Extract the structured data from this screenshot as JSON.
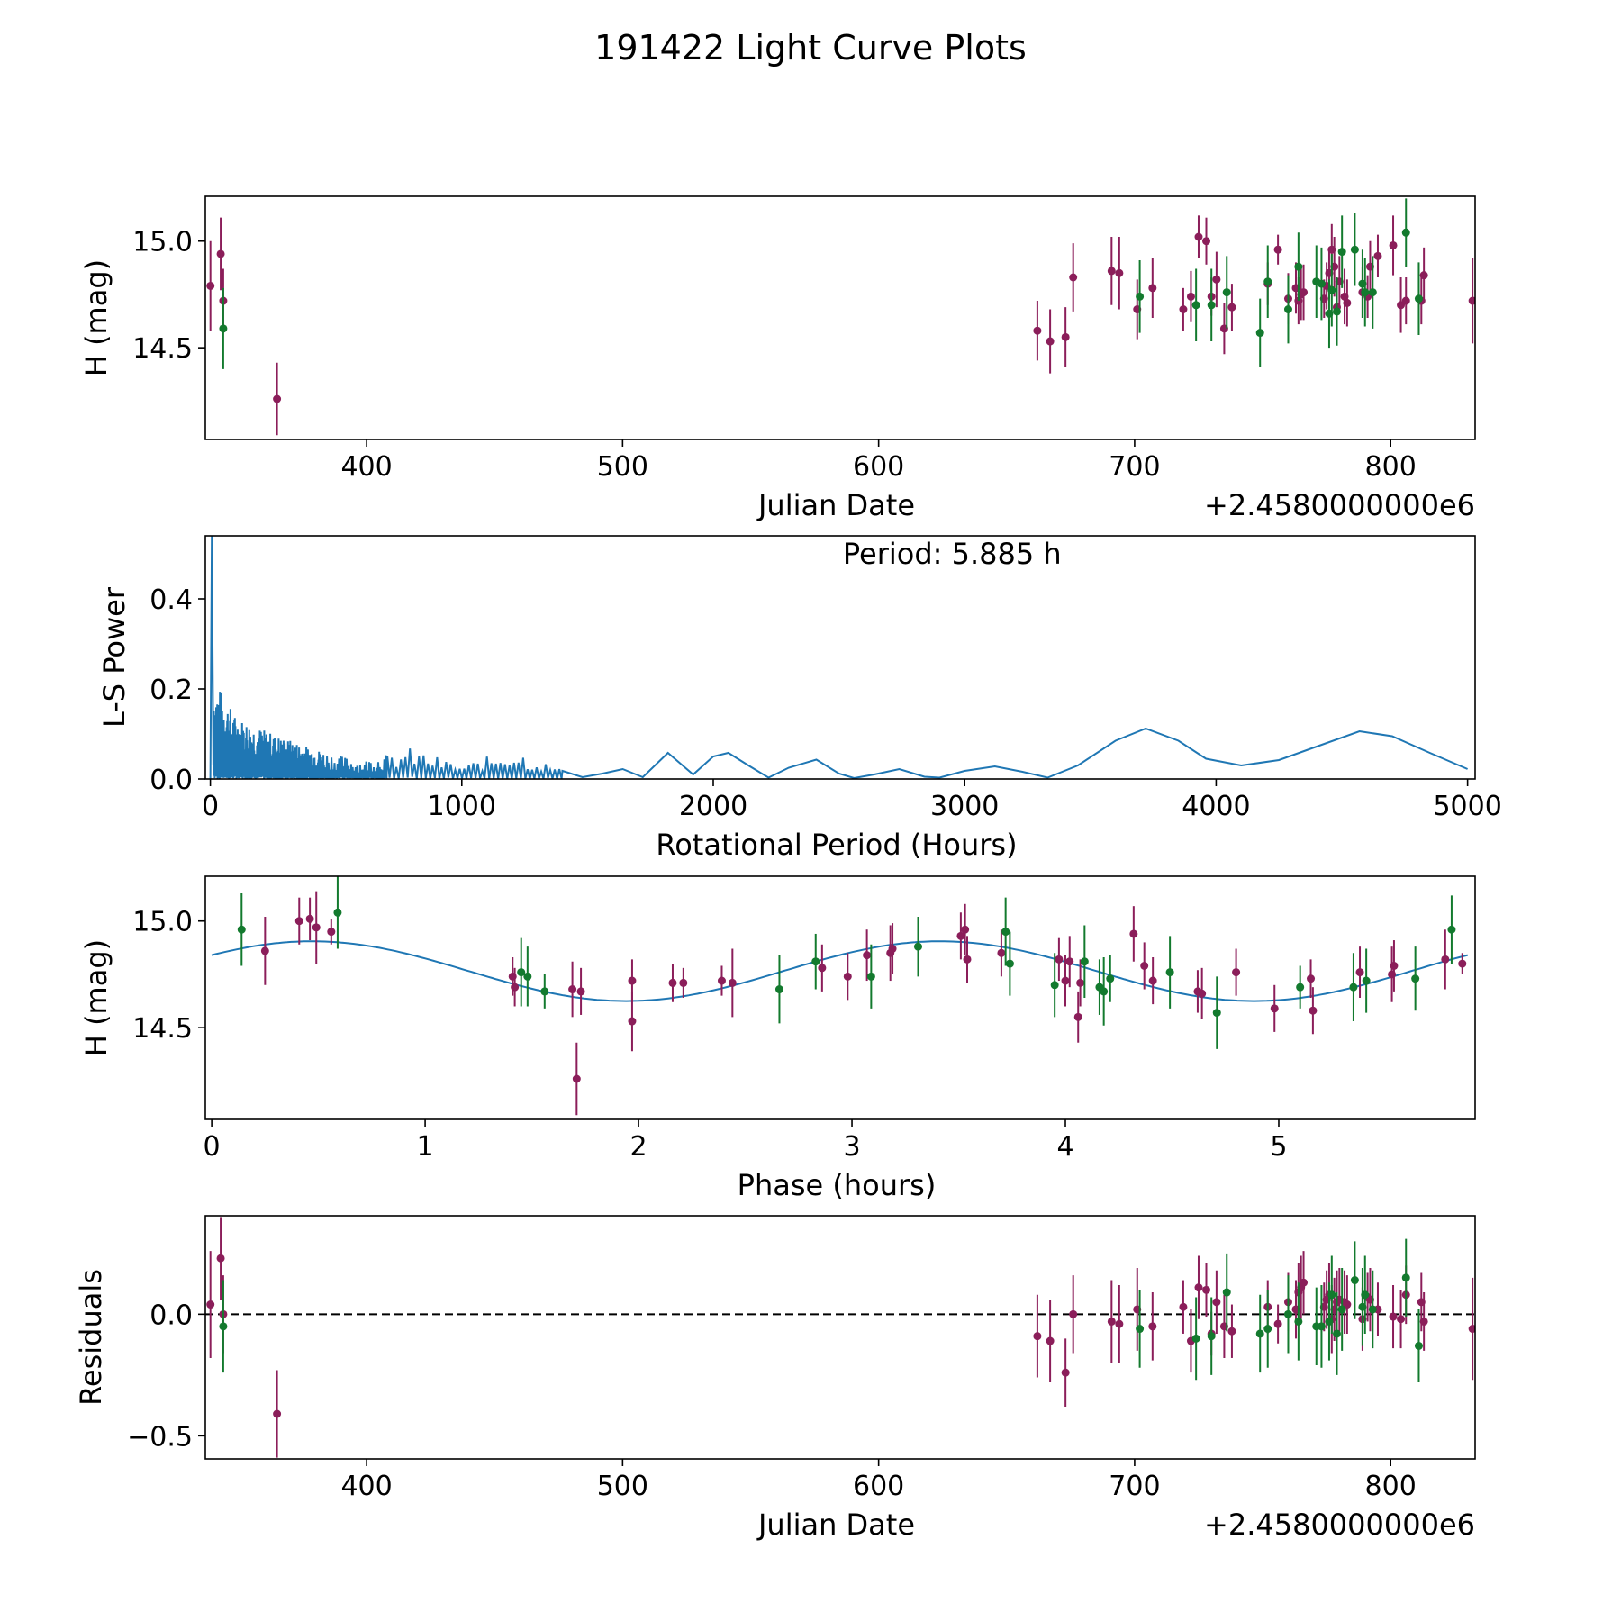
{
  "figure": {
    "title": "191422 Light Curve Plots"
  },
  "colors": {
    "series_a": "#8B1E5A",
    "series_b": "#137A2E",
    "curve": "#1F77B4",
    "axis": "#000000"
  },
  "chart_data": [
    {
      "id": "lightcurve",
      "type": "scatter",
      "title": "",
      "xlabel": "Julian Date",
      "ylabel": "H (mag)",
      "offset_text": "+2.4580000000e6",
      "xlim": [
        337,
        833
      ],
      "ylim": [
        14.07,
        15.21
      ],
      "xticks": [
        400,
        500,
        600,
        700,
        800
      ],
      "xtick_labels": [
        "400",
        "500",
        "600",
        "700",
        "800"
      ],
      "yticks": [
        14.5,
        15.0
      ],
      "ytick_labels": [
        "14.5",
        "15.0"
      ],
      "series": [
        {
          "name": "series-a",
          "x": [
            339,
            343,
            344,
            365,
            662,
            667,
            673,
            676,
            691,
            694,
            701,
            707,
            719,
            722,
            725,
            728,
            730,
            732,
            735,
            738,
            752,
            756,
            760,
            763,
            764,
            765,
            766,
            774,
            775,
            776,
            777,
            778,
            779,
            780,
            782,
            783,
            789,
            791,
            792,
            795,
            801,
            804,
            806,
            812,
            813,
            832
          ],
          "y": [
            14.79,
            14.94,
            14.72,
            14.26,
            14.58,
            14.53,
            14.55,
            14.83,
            14.86,
            14.85,
            14.68,
            14.78,
            14.68,
            14.74,
            15.02,
            15.0,
            14.74,
            14.82,
            14.59,
            14.69,
            14.8,
            14.96,
            14.73,
            14.78,
            14.72,
            14.75,
            14.76,
            14.73,
            14.79,
            14.85,
            14.96,
            14.88,
            14.69,
            14.81,
            14.74,
            14.71,
            14.76,
            14.74,
            14.88,
            14.93,
            14.98,
            14.7,
            14.72,
            14.72,
            14.84,
            14.72
          ],
          "err": [
            0.21,
            0.17,
            0.15,
            0.17,
            0.14,
            0.15,
            0.14,
            0.16,
            0.16,
            0.17,
            0.14,
            0.14,
            0.1,
            0.12,
            0.1,
            0.11,
            0.09,
            0.13,
            0.12,
            0.11,
            0.1,
            0.07,
            0.12,
            0.12,
            0.11,
            0.12,
            0.13,
            0.09,
            0.11,
            0.12,
            0.12,
            0.14,
            0.12,
            0.12,
            0.13,
            0.11,
            0.12,
            0.1,
            0.12,
            0.1,
            0.14,
            0.13,
            0.11,
            0.11,
            0.13,
            0.2
          ]
        },
        {
          "name": "series-b",
          "x": [
            344,
            702,
            724,
            730,
            736,
            749,
            752,
            760,
            764,
            771,
            773,
            776,
            777,
            779,
            781,
            786,
            789,
            790,
            793,
            806,
            811
          ],
          "y": [
            14.59,
            14.74,
            14.7,
            14.7,
            14.76,
            14.57,
            14.81,
            14.68,
            14.88,
            14.81,
            14.8,
            14.66,
            14.77,
            14.67,
            14.95,
            14.96,
            14.8,
            14.76,
            14.76,
            15.04,
            14.73
          ],
          "err": [
            0.19,
            0.17,
            0.17,
            0.17,
            0.17,
            0.16,
            0.17,
            0.16,
            0.16,
            0.17,
            0.17,
            0.16,
            0.17,
            0.16,
            0.17,
            0.17,
            0.16,
            0.16,
            0.17,
            0.16,
            0.17
          ]
        }
      ]
    },
    {
      "id": "periodogram",
      "type": "line",
      "title": "",
      "annotation": "Period: 5.885 h",
      "xlabel": "Rotational Period (Hours)",
      "ylabel": "L-S Power",
      "xlim": [
        -20,
        5030
      ],
      "ylim": [
        0,
        0.54
      ],
      "xticks": [
        0,
        1000,
        2000,
        3000,
        4000,
        5000
      ],
      "xtick_labels": [
        "0",
        "1000",
        "2000",
        "3000",
        "4000",
        "5000"
      ],
      "yticks": [
        0.0,
        0.2,
        0.4
      ],
      "ytick_labels": [
        "0.0",
        "0.2",
        "0.4"
      ],
      "peak": {
        "period": 5.885,
        "power": 0.54
      },
      "envelope": {
        "period": [
          0,
          100,
          250,
          400,
          600,
          800,
          1000,
          1200,
          1400,
          1600,
          1800,
          2000,
          2200,
          2400,
          2600,
          2800,
          3000,
          3200,
          3400,
          3700,
          4000,
          4200,
          4600,
          5000
        ],
        "power": [
          0.24,
          0.14,
          0.1,
          0.07,
          0.04,
          0.07,
          0.03,
          0.07,
          0.02,
          0.02,
          0.06,
          0.06,
          0.01,
          0.045,
          0.005,
          0.02,
          0.02,
          0.02,
          0.01,
          0.11,
          0.04,
          0.04,
          0.105,
          0.02
        ]
      },
      "smooth_curve": {
        "period": [
          1400,
          1480,
          1560,
          1640,
          1720,
          1820,
          1920,
          2000,
          2060,
          2140,
          2220,
          2300,
          2410,
          2500,
          2560,
          2640,
          2740,
          2840,
          2900,
          3000,
          3120,
          3230,
          3330,
          3450,
          3600,
          3720,
          3850,
          3960,
          4100,
          4250,
          4400,
          4570,
          4700,
          4850,
          5000
        ],
        "power": [
          0.018,
          0.004,
          0.012,
          0.022,
          0.004,
          0.058,
          0.01,
          0.05,
          0.058,
          0.03,
          0.003,
          0.025,
          0.043,
          0.012,
          0.002,
          0.01,
          0.022,
          0.005,
          0.003,
          0.018,
          0.028,
          0.016,
          0.003,
          0.03,
          0.085,
          0.112,
          0.085,
          0.045,
          0.03,
          0.042,
          0.072,
          0.106,
          0.095,
          0.058,
          0.022
        ]
      }
    },
    {
      "id": "phase",
      "type": "scatter",
      "title": "",
      "xlabel": "Phase (hours)",
      "ylabel": "H (mag)",
      "xlim": [
        -0.03,
        5.92
      ],
      "ylim": [
        14.07,
        15.21
      ],
      "xticks": [
        0,
        1,
        2,
        3,
        4,
        5
      ],
      "xtick_labels": [
        "0",
        "1",
        "2",
        "3",
        "4",
        "5"
      ],
      "yticks": [
        14.5,
        15.0
      ],
      "ytick_labels": [
        "14.5",
        "15.0"
      ],
      "model": {
        "mean": 14.765,
        "amplitude": 0.14,
        "peak_phase": 0.47,
        "period_hours": 2.9425,
        "x_range": [
          0,
          5.885
        ]
      },
      "series": [
        {
          "name": "series-a",
          "x": [
            0.25,
            0.41,
            0.46,
            0.49,
            0.56,
            1.41,
            1.42,
            1.69,
            1.71,
            1.73,
            1.97,
            1.97,
            2.16,
            2.21,
            2.39,
            2.44,
            2.86,
            2.98,
            3.07,
            3.18,
            3.19,
            3.51,
            3.53,
            3.54,
            3.7,
            3.97,
            4.0,
            4.02,
            4.06,
            4.07,
            4.32,
            4.37,
            4.41,
            4.62,
            4.64,
            4.8,
            4.98,
            5.15,
            5.16,
            5.38,
            5.53,
            5.54,
            5.78,
            5.86
          ],
          "y": [
            14.86,
            15.0,
            15.01,
            14.97,
            14.95,
            14.74,
            14.69,
            14.68,
            14.26,
            14.67,
            14.72,
            14.53,
            14.71,
            14.71,
            14.72,
            14.71,
            14.78,
            14.74,
            14.84,
            14.85,
            14.87,
            14.93,
            14.96,
            14.82,
            14.85,
            14.82,
            14.72,
            14.81,
            14.55,
            14.71,
            14.94,
            14.79,
            14.72,
            14.67,
            14.66,
            14.76,
            14.59,
            14.73,
            14.58,
            14.76,
            14.75,
            14.79,
            14.82,
            14.8
          ],
          "err": [
            0.16,
            0.11,
            0.1,
            0.17,
            0.06,
            0.09,
            0.09,
            0.13,
            0.17,
            0.11,
            0.1,
            0.14,
            0.09,
            0.07,
            0.07,
            0.16,
            0.11,
            0.11,
            0.12,
            0.13,
            0.12,
            0.11,
            0.12,
            0.11,
            0.11,
            0.1,
            0.12,
            0.12,
            0.12,
            0.11,
            0.13,
            0.11,
            0.11,
            0.1,
            0.12,
            0.11,
            0.11,
            0.09,
            0.11,
            0.12,
            0.13,
            0.12,
            0.14,
            0.05
          ]
        },
        {
          "name": "series-b",
          "x": [
            0.14,
            0.59,
            1.45,
            1.48,
            1.56,
            2.66,
            2.83,
            3.09,
            3.31,
            3.72,
            3.74,
            3.95,
            4.09,
            4.16,
            4.18,
            4.21,
            4.49,
            4.71,
            5.1,
            5.35,
            5.41,
            5.64,
            5.81
          ],
          "y": [
            14.96,
            15.04,
            14.76,
            14.74,
            14.67,
            14.68,
            14.81,
            14.74,
            14.88,
            14.95,
            14.8,
            14.7,
            14.81,
            14.69,
            14.67,
            14.73,
            14.76,
            14.57,
            14.69,
            14.69,
            14.72,
            14.73,
            14.96
          ],
          "err": [
            0.17,
            0.17,
            0.16,
            0.14,
            0.08,
            0.16,
            0.13,
            0.15,
            0.14,
            0.16,
            0.15,
            0.15,
            0.17,
            0.13,
            0.16,
            0.11,
            0.17,
            0.17,
            0.1,
            0.16,
            0.15,
            0.15,
            0.16
          ]
        }
      ]
    },
    {
      "id": "residuals",
      "type": "scatter",
      "title": "",
      "xlabel": "Julian Date",
      "ylabel": "Residuals",
      "offset_text": "+2.4580000000e6",
      "xlim": [
        337,
        833
      ],
      "ylim": [
        -0.595,
        0.405
      ],
      "xticks": [
        400,
        500,
        600,
        700,
        800
      ],
      "xtick_labels": [
        "400",
        "500",
        "600",
        "700",
        "800"
      ],
      "yticks": [
        -0.5,
        0.0
      ],
      "ytick_labels": [
        "−0.5",
        "0.0"
      ],
      "zero_line": 0.0,
      "series": [
        {
          "name": "series-a",
          "x": [
            339,
            343,
            344,
            365,
            662,
            667,
            673,
            676,
            691,
            694,
            701,
            707,
            719,
            722,
            725,
            728,
            730,
            732,
            735,
            738,
            752,
            756,
            760,
            763,
            764,
            765,
            766,
            774,
            775,
            776,
            777,
            778,
            779,
            780,
            782,
            783,
            789,
            791,
            792,
            795,
            801,
            804,
            806,
            812,
            813,
            832
          ],
          "y": [
            0.04,
            0.23,
            0.0,
            -0.41,
            -0.09,
            -0.11,
            -0.24,
            0.0,
            -0.03,
            -0.04,
            0.02,
            -0.05,
            0.03,
            -0.11,
            0.11,
            0.1,
            -0.08,
            0.05,
            -0.05,
            -0.07,
            0.03,
            -0.04,
            0.05,
            0.02,
            0.09,
            0.11,
            0.13,
            0.03,
            0.06,
            0.08,
            -0.02,
            0.02,
            0.05,
            0.06,
            0.05,
            0.04,
            -0.02,
            0.07,
            0.06,
            0.02,
            -0.01,
            -0.02,
            0.08,
            0.05,
            -0.03,
            -0.06
          ],
          "err": [
            0.22,
            0.17,
            0.16,
            0.18,
            0.17,
            0.17,
            0.14,
            0.16,
            0.17,
            0.16,
            0.17,
            0.14,
            0.11,
            0.13,
            0.13,
            0.11,
            0.09,
            0.13,
            0.13,
            0.11,
            0.11,
            0.08,
            0.12,
            0.12,
            0.12,
            0.13,
            0.13,
            0.1,
            0.12,
            0.13,
            0.14,
            0.13,
            0.13,
            0.13,
            0.13,
            0.12,
            0.13,
            0.1,
            0.13,
            0.11,
            0.13,
            0.12,
            0.12,
            0.12,
            0.12,
            0.21
          ]
        },
        {
          "name": "series-b",
          "x": [
            344,
            702,
            724,
            730,
            736,
            749,
            752,
            760,
            764,
            771,
            773,
            776,
            777,
            779,
            781,
            786,
            789,
            790,
            793,
            806,
            811
          ],
          "y": [
            -0.05,
            -0.06,
            -0.1,
            -0.09,
            0.09,
            -0.08,
            -0.06,
            0.0,
            -0.03,
            -0.05,
            -0.05,
            -0.03,
            0.08,
            -0.08,
            0.02,
            0.14,
            0.03,
            0.08,
            0.02,
            0.15,
            -0.13
          ],
          "err": [
            0.19,
            0.16,
            0.17,
            0.16,
            0.16,
            0.16,
            0.16,
            0.16,
            0.16,
            0.16,
            0.17,
            0.16,
            0.16,
            0.17,
            0.17,
            0.16,
            0.16,
            0.16,
            0.16,
            0.16,
            0.15
          ]
        }
      ]
    }
  ]
}
